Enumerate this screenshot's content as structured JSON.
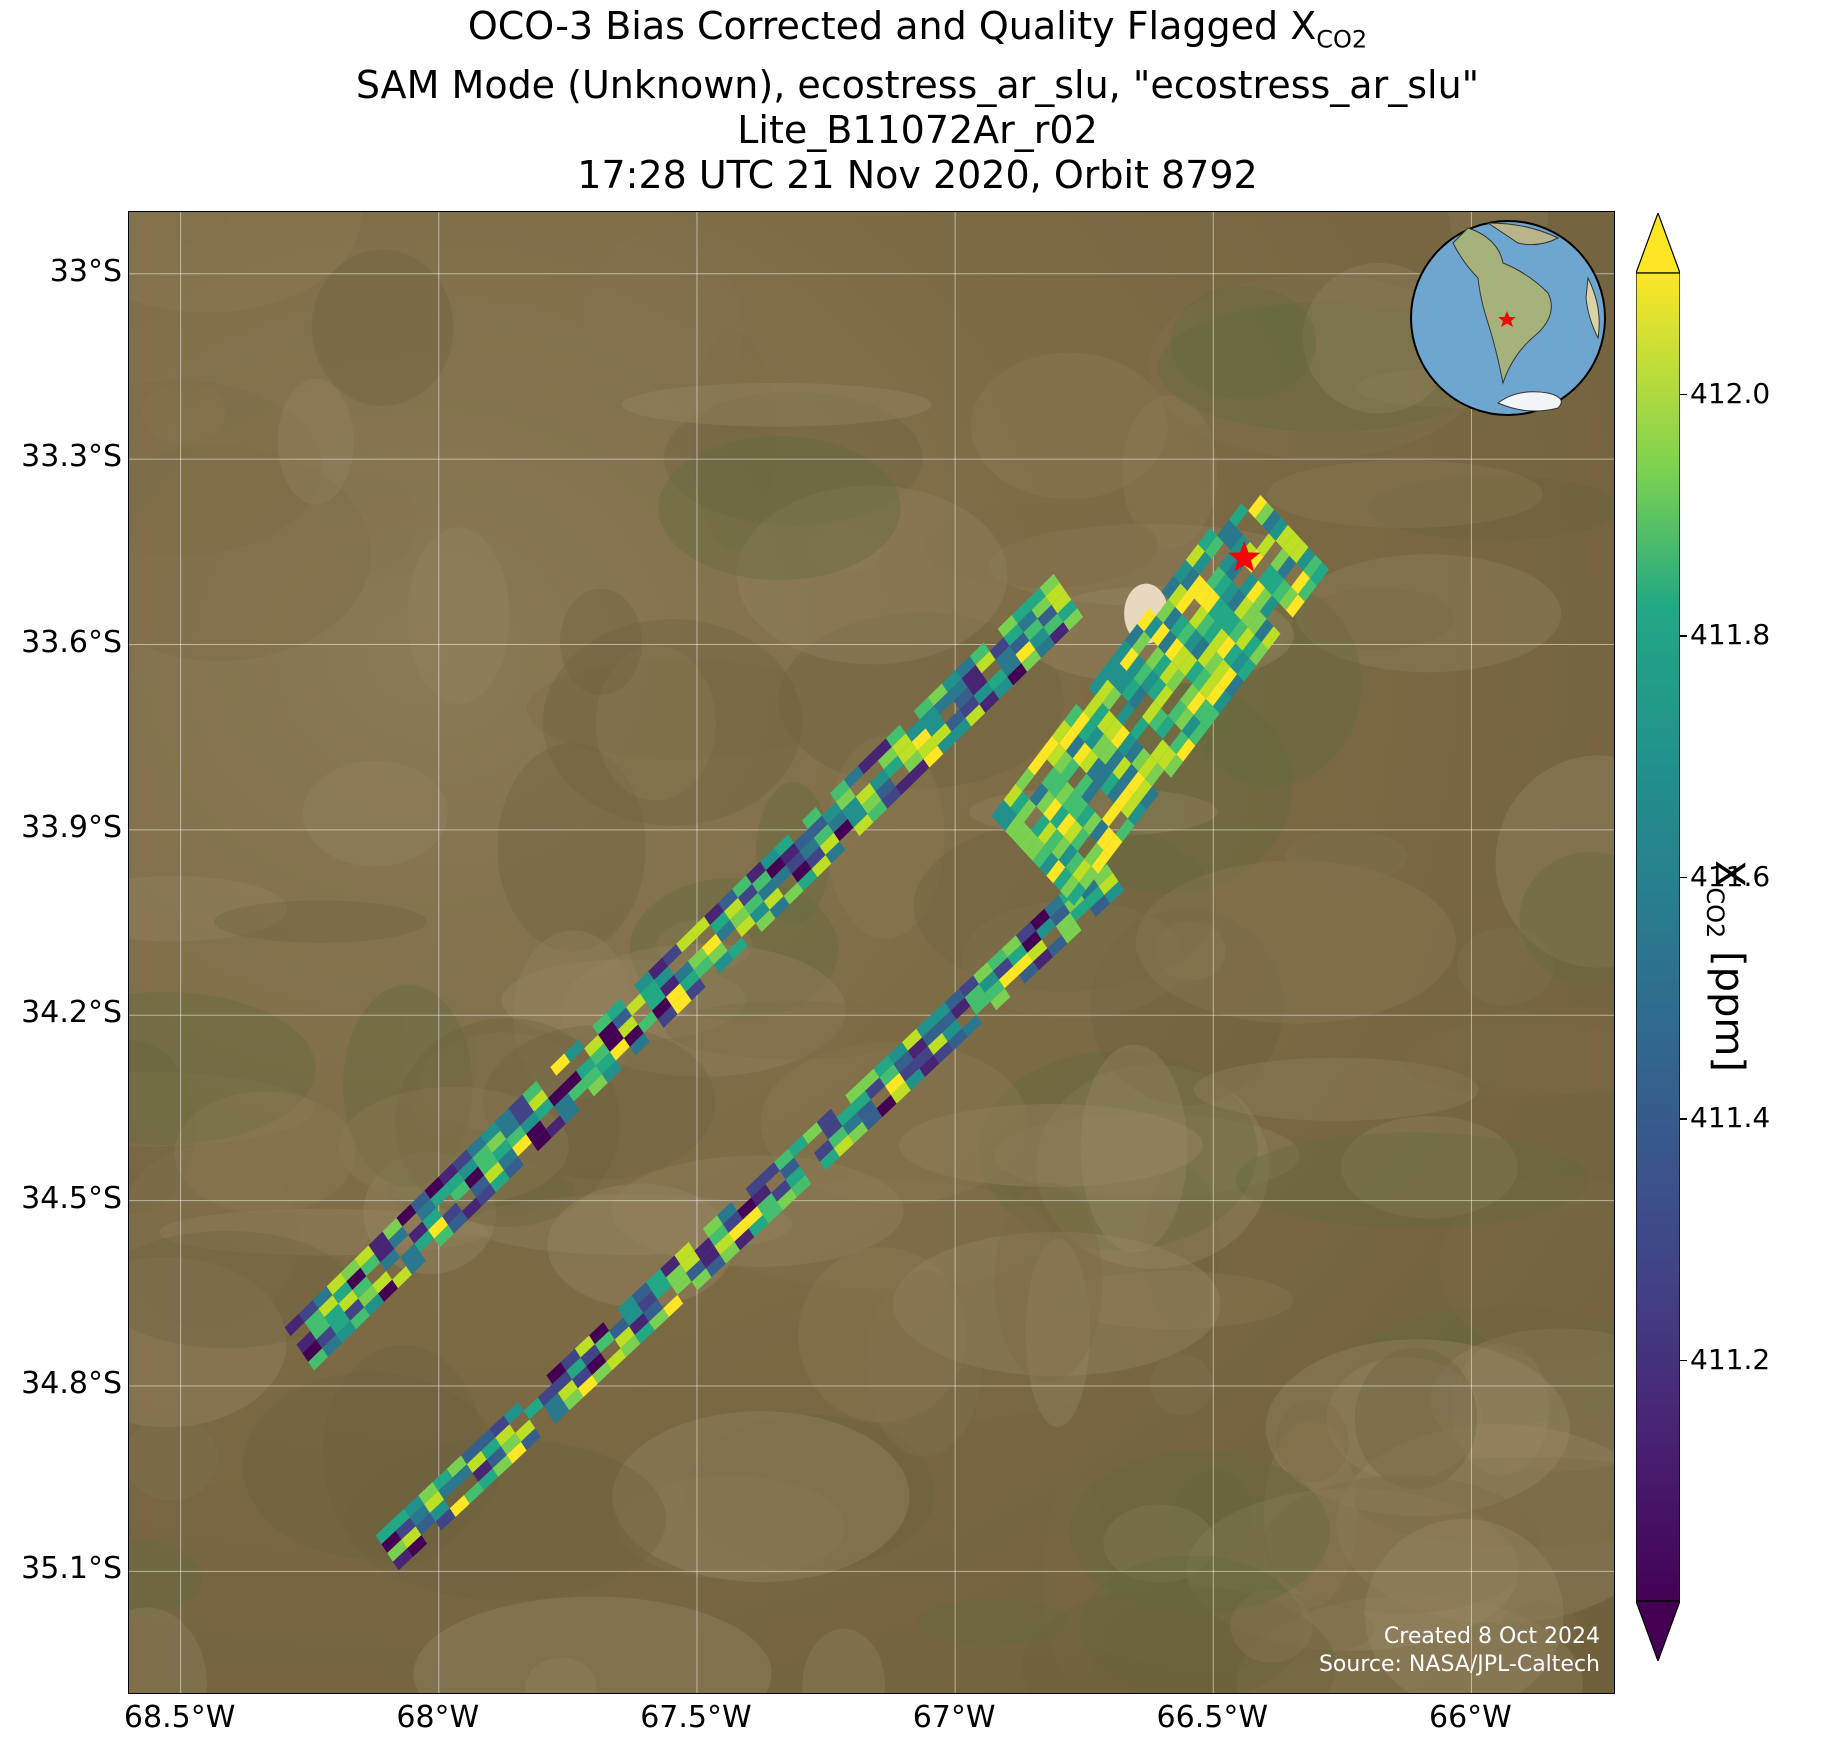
{
  "title": {
    "line1_prefix": "OCO-3 Bias Corrected and Quality Flagged X",
    "line1_sub": "CO2",
    "line2": "SAM Mode (Unknown), ecostress_ar_slu, \"ecostress_ar_slu\"",
    "line3": "Lite_B11072Ar_r02",
    "line4": "17:28 UTC 21 Nov 2020, Orbit 8792"
  },
  "map": {
    "y_ticks": [
      "33°S",
      "33.3°S",
      "33.6°S",
      "33.9°S",
      "34.2°S",
      "34.5°S",
      "34.8°S",
      "35.1°S"
    ],
    "x_ticks": [
      "68.5°W",
      "68°W",
      "67.5°W",
      "67°W",
      "66.5°W",
      "66°W"
    ],
    "lon_range": [
      -68.6,
      -65.72
    ],
    "lat_range": [
      -32.9,
      -35.3
    ],
    "target_marker": {
      "lon": -66.44,
      "lat": -33.46,
      "color": "#ff0000"
    },
    "credit_line1": "Created 8 Oct 2024",
    "credit_line2": "Source: NASA/JPL-Caltech",
    "grid": true
  },
  "colorbar": {
    "label_prefix": "X",
    "label_sub": "CO2",
    "label_suffix": " [ppm]",
    "ticks": [
      "412.0",
      "411.8",
      "411.6",
      "411.4",
      "411.2"
    ],
    "tick_values": [
      412.0,
      411.8,
      411.6,
      411.4,
      411.2
    ],
    "vmin": 411.0,
    "vmax": 412.1,
    "colormap": "viridis",
    "extend": "both"
  },
  "swaths": [
    {
      "name": "upper-swath",
      "start": [
        -68.27,
        -34.74
      ],
      "end": [
        -66.78,
        -33.52
      ],
      "width_deg": 0.095
    },
    {
      "name": "lower-swath",
      "start": [
        -68.1,
        -35.07
      ],
      "end": [
        -66.67,
        -33.95
      ],
      "width_deg": 0.075
    },
    {
      "name": "target-cluster",
      "start": [
        -66.85,
        -33.95
      ],
      "end": [
        -66.35,
        -33.4
      ],
      "width_deg": 0.22
    }
  ]
}
